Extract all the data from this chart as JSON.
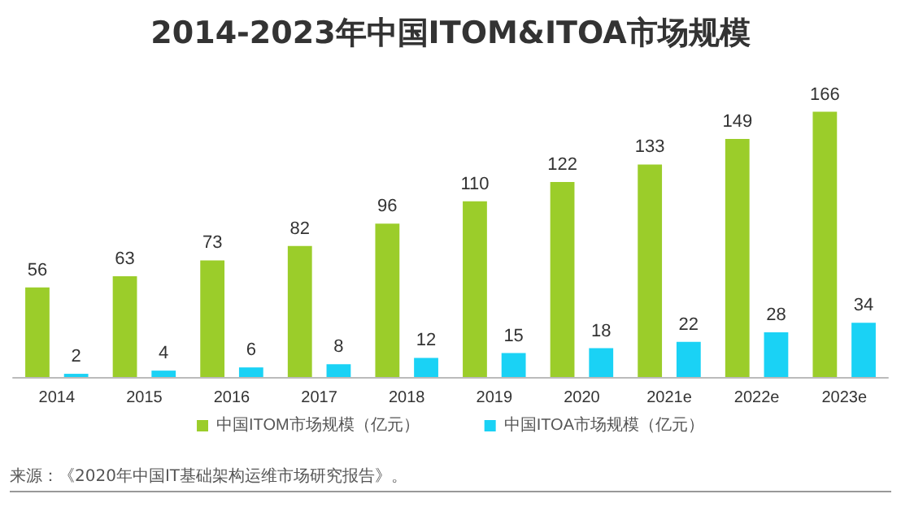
{
  "chart_data": {
    "type": "bar",
    "title": "2014-2023年中国ITOM&ITOA市场规模",
    "categories": [
      "2014",
      "2015",
      "2016",
      "2017",
      "2018",
      "2019",
      "2020",
      "2021e",
      "2022e",
      "2023e"
    ],
    "series": [
      {
        "name": "中国ITOM市场规模（亿元）",
        "color": "#9bcd2a",
        "values": [
          56,
          63,
          73,
          82,
          96,
          110,
          122,
          133,
          149,
          166
        ]
      },
      {
        "name": "中国ITOA市场规模（亿元）",
        "color": "#1ad2f5",
        "values": [
          2,
          4,
          6,
          8,
          12,
          15,
          18,
          22,
          28,
          34
        ]
      }
    ],
    "data_labels": true,
    "legend": "bottom",
    "tick_labels": "x",
    "annotations": [
      "来源：《2020年中国IT基础架构运维市场研究报告》。"
    ]
  }
}
